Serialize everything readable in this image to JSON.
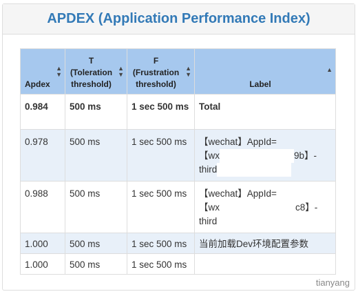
{
  "panel": {
    "title": "APDEX (Application Performance Index)"
  },
  "table": {
    "headers": {
      "apdex": "Apdex",
      "t_letter": "T",
      "t_desc1": "(Toleration",
      "t_desc2": "threshold)",
      "f_letter": "F",
      "f_desc1": "(Frustration",
      "f_desc2": "threshold)",
      "label": "Label"
    },
    "rows": [
      {
        "apdex": "0.984",
        "t": "500 ms",
        "f": "1 sec 500 ms",
        "label": "Total"
      },
      {
        "apdex": "0.978",
        "t": "500 ms",
        "f": "1 sec 500 ms",
        "label_l1": "【wechat】AppId=",
        "label_l2a": "【wx",
        "label_l2b": "9b】-",
        "label_l3": "third"
      },
      {
        "apdex": "0.988",
        "t": "500 ms",
        "f": "1 sec 500 ms",
        "label_l1": "【wechat】AppId=",
        "label_l2a": "【wx",
        "label_l2b": "c8】-",
        "label_l3": "third"
      },
      {
        "apdex": "1.000",
        "t": "500 ms",
        "f": "1 sec 500 ms",
        "label": "当前加载Dev环境配置参数"
      },
      {
        "apdex": "1.000",
        "t": "500 ms",
        "f": "1 sec 500 ms",
        "label": ""
      }
    ]
  },
  "watermark": "tianyang"
}
